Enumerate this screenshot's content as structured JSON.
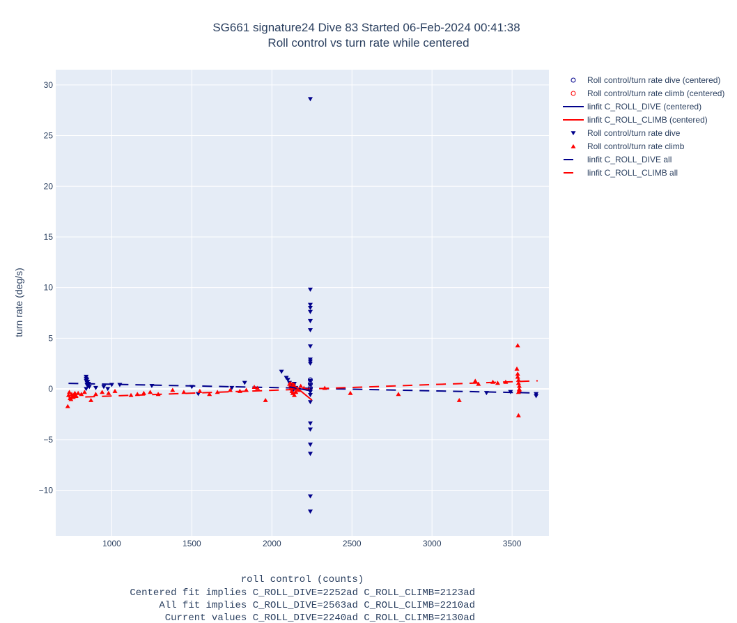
{
  "chart_data": {
    "type": "scatter",
    "title_lines": [
      "SG661 signature24 Dive 83 Started 06-Feb-2024 00:41:38",
      "Roll control vs turn rate while centered"
    ],
    "xlabel_lines": [
      "roll control (counts)",
      "Centered fit implies C_ROLL_DIVE=2252ad C_ROLL_CLIMB=2123ad",
      "All fit implies C_ROLL_DIVE=2563ad C_ROLL_CLIMB=2210ad",
      "Current values C_ROLL_DIVE=2240ad C_ROLL_CLIMB=2130ad"
    ],
    "ylabel": "turn rate (deg/s)",
    "xlim": [
      650,
      3730
    ],
    "ylim": [
      -14.5,
      31.5
    ],
    "xticks": [
      1000,
      1500,
      2000,
      2500,
      3000,
      3500
    ],
    "yticks": [
      -10,
      -5,
      0,
      5,
      10,
      15,
      20,
      25,
      30
    ],
    "ytick_labels": [
      "−10",
      "−5",
      "0",
      "5",
      "10",
      "15",
      "20",
      "25",
      "30"
    ],
    "grid": true,
    "legend_position": "right",
    "series": [
      {
        "name": "Roll control/turn rate dive (centered)",
        "kind": "marker",
        "symbol": "circle-open",
        "color": "#00008b",
        "x": [
          2240,
          2240,
          2240
        ],
        "y": [
          0.9,
          0.5,
          0.1
        ]
      },
      {
        "name": "Roll control/turn rate climb (centered)",
        "kind": "marker",
        "symbol": "circle-open",
        "color": "#ff0000",
        "x": [
          2130,
          2130
        ],
        "y": [
          0.4,
          -0.2
        ]
      },
      {
        "name": "linfit C_ROLL_DIVE (centered)",
        "kind": "line",
        "dash": "solid",
        "color": "#00008b",
        "x": [
          2110,
          2250
        ],
        "y": [
          0.2,
          -0.2
        ]
      },
      {
        "name": "linfit C_ROLL_CLIMB (centered)",
        "kind": "line",
        "dash": "solid",
        "color": "#ff0000",
        "x": [
          2110,
          2250
        ],
        "y": [
          0.7,
          -1.1
        ]
      },
      {
        "name": "Roll control/turn rate dive",
        "kind": "marker",
        "symbol": "triangle-down",
        "color": "#00008b",
        "x": [
          840,
          840,
          840,
          845,
          845,
          850,
          850,
          855,
          860,
          840,
          845,
          900,
          950,
          975,
          1000,
          1050,
          1250,
          1500,
          1540,
          1750,
          1830,
          2060,
          2090,
          2100,
          2110,
          2115,
          2120,
          2125,
          2130,
          2135,
          2140,
          2150,
          2240,
          2240,
          2240,
          2240,
          2240,
          2240,
          2240,
          2240,
          2240,
          2240,
          2240,
          2240,
          2240,
          2240,
          2240,
          2240,
          2240,
          2240,
          2240,
          2240,
          2240,
          2240,
          2240,
          3340,
          3490,
          3650,
          3650
        ],
        "y": [
          1.2,
          1.0,
          0.8,
          0.6,
          0.4,
          0.3,
          0.7,
          0.5,
          0.2,
          0.0,
          0.9,
          0.1,
          0.2,
          0.0,
          0.4,
          0.4,
          0.3,
          0.2,
          -0.5,
          0.1,
          0.6,
          1.7,
          1.1,
          0.9,
          0.6,
          0.4,
          0.2,
          0.0,
          -0.2,
          0.3,
          0.5,
          0.1,
          28.6,
          9.8,
          8.3,
          8.0,
          7.6,
          6.7,
          5.8,
          4.2,
          2.9,
          2.7,
          2.5,
          0.8,
          0.4,
          0.0,
          -0.3,
          -0.6,
          -1.3,
          -3.4,
          -4.0,
          -5.5,
          -6.4,
          -10.6,
          -12.1,
          -0.4,
          -0.3,
          -0.5,
          -0.7
        ]
      },
      {
        "name": "Roll control/turn rate climb",
        "kind": "marker",
        "symbol": "triangle-up",
        "color": "#ff0000",
        "x": [
          730,
          740,
          750,
          760,
          770,
          725,
          735,
          745,
          755,
          765,
          775,
          790,
          810,
          830,
          870,
          900,
          940,
          980,
          1020,
          1120,
          1160,
          1200,
          1240,
          1290,
          1380,
          1450,
          1550,
          1610,
          1660,
          1740,
          1800,
          1840,
          1890,
          1910,
          1960,
          2110,
          2115,
          2120,
          2125,
          2130,
          2135,
          2140,
          2145,
          2150,
          2160,
          2170,
          2180,
          2200,
          2230,
          2330,
          2490,
          2790,
          3170,
          3270,
          3290,
          3380,
          3410,
          3460,
          3530,
          3535,
          3535,
          3540,
          3540,
          3545,
          3545,
          3540,
          3535,
          3540,
          3545
        ],
        "y": [
          -0.6,
          -0.9,
          -0.5,
          -0.8,
          -0.4,
          -1.7,
          -0.3,
          -1.0,
          -0.7,
          -0.5,
          -0.6,
          -0.4,
          -0.5,
          -0.3,
          -1.1,
          -0.5,
          -0.3,
          -0.4,
          -0.2,
          -0.6,
          -0.5,
          -0.4,
          -0.3,
          -0.5,
          -0.1,
          -0.3,
          -0.2,
          -0.5,
          -0.3,
          -0.1,
          -0.2,
          -0.1,
          0.2,
          0.1,
          -1.1,
          0.5,
          0.3,
          0.1,
          -0.2,
          -0.4,
          0.4,
          -0.6,
          0.2,
          -0.3,
          0.0,
          -0.1,
          0.3,
          0.1,
          0.0,
          0.1,
          -0.4,
          -0.5,
          -1.1,
          0.8,
          0.5,
          0.7,
          0.6,
          0.7,
          2.0,
          1.5,
          1.2,
          0.9,
          0.6,
          0.3,
          0.0,
          -0.3,
          4.3,
          -2.6,
          -0.1
        ]
      },
      {
        "name": "linfit C_ROLL_DIVE all",
        "kind": "line",
        "dash": "dash",
        "color": "#00008b",
        "x": [
          730,
          3660
        ],
        "y": [
          0.55,
          -0.4
        ]
      },
      {
        "name": "linfit C_ROLL_CLIMB all",
        "kind": "line",
        "dash": "dash",
        "color": "#ff0000",
        "x": [
          730,
          3660
        ],
        "y": [
          -0.85,
          0.8
        ]
      }
    ]
  }
}
